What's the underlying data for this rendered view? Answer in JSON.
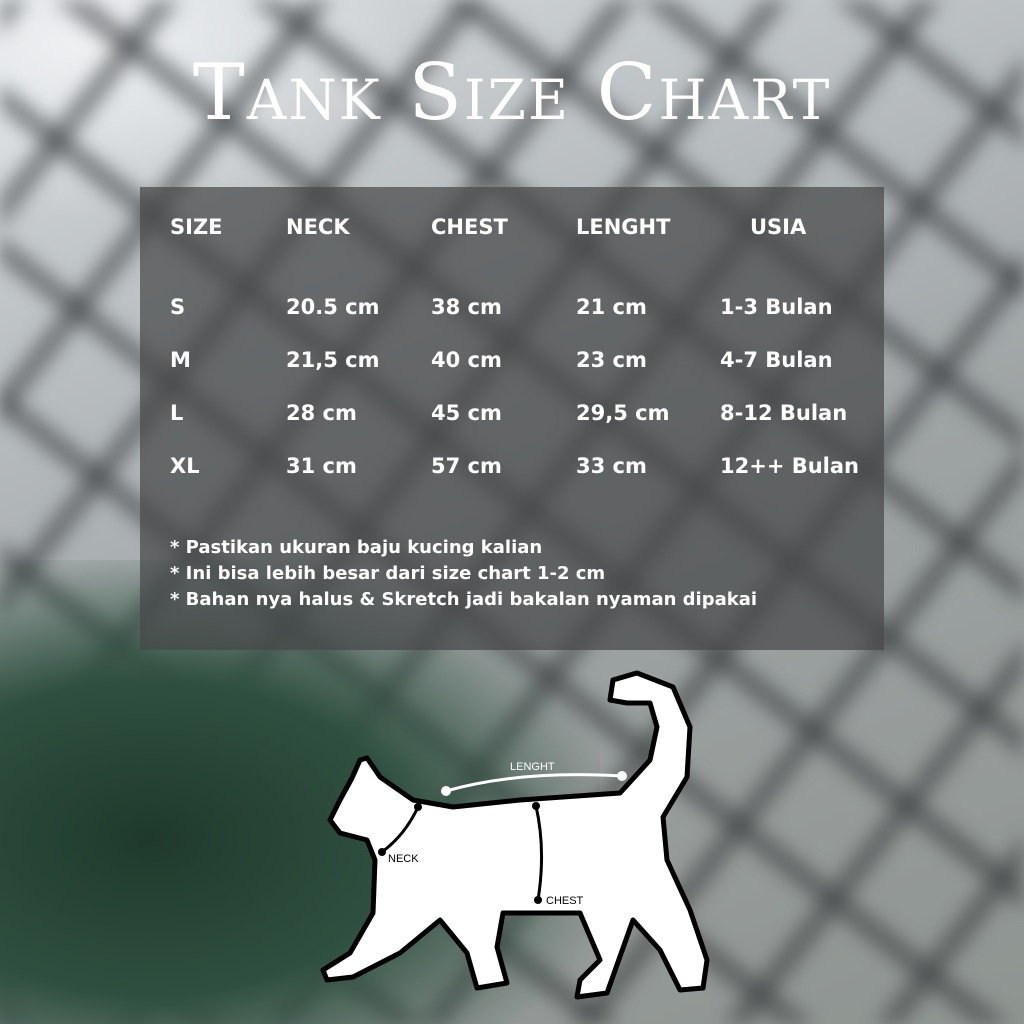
{
  "title": "Tank Size Chart",
  "table": {
    "headers": [
      "SIZE",
      "NECK",
      "CHEST",
      "LENGHT",
      "USIA"
    ],
    "rows": [
      [
        "S",
        "20.5 cm",
        "38 cm",
        "21 cm",
        "1-3 Bulan"
      ],
      [
        "M",
        "21,5 cm",
        "40 cm",
        "23 cm",
        "4-7 Bulan"
      ],
      [
        "L",
        "28 cm",
        "45 cm",
        "29,5 cm",
        "8-12 Bulan"
      ],
      [
        "XL",
        "31 cm",
        "57 cm",
        "33 cm",
        "12++ Bulan"
      ]
    ]
  },
  "notes": [
    "* Pastikan ukuran baju kucing kalian",
    "* Ini bisa lebih besar dari size chart 1-2 cm",
    "* Bahan nya halus & Skretch jadi bakalan nyaman dipakai"
  ],
  "diagram": {
    "length_label": "LENGHT",
    "neck_label": "NECK",
    "chest_label": "CHEST"
  }
}
